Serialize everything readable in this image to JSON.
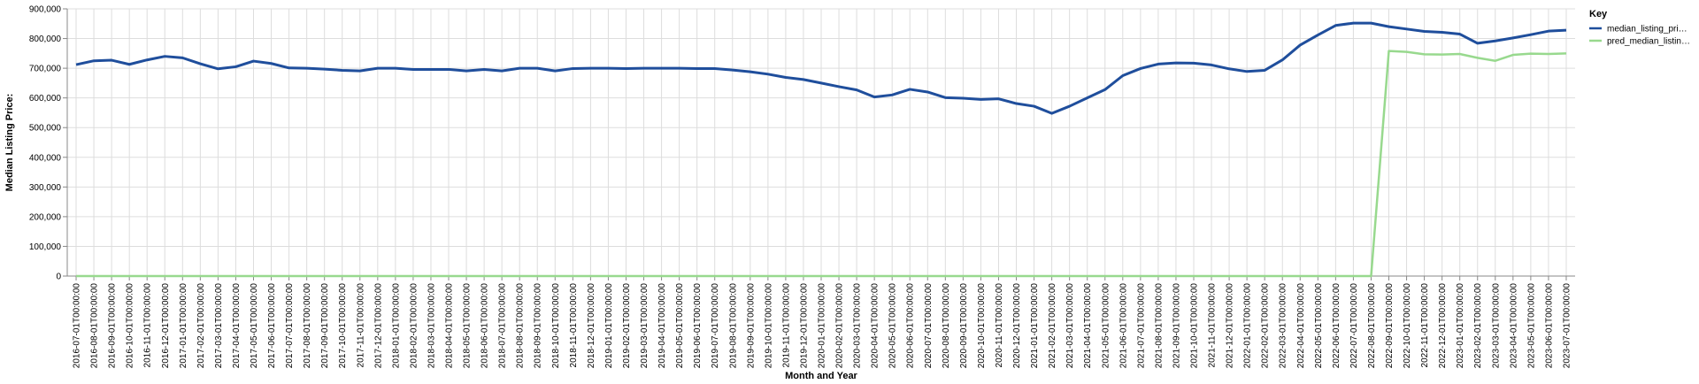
{
  "chart_data": {
    "type": "line",
    "xlabel": "Month and Year",
    "ylabel": "Median Listing Price:",
    "ylim": [
      0,
      900000
    ],
    "y_ticks": [
      "0",
      "100,000",
      "200,000",
      "300,000",
      "400,000",
      "500,000",
      "600,000",
      "700,000",
      "800,000",
      "900,000"
    ],
    "grid": true,
    "legend": {
      "title": "Key",
      "placement": "right"
    },
    "x": [
      "2016-07-01T00:00:00",
      "2016-08-01T00:00:00",
      "2016-09-01T00:00:00",
      "2016-10-01T00:00:00",
      "2016-11-01T00:00:00",
      "2016-12-01T00:00:00",
      "2017-01-01T00:00:00",
      "2017-02-01T00:00:00",
      "2017-03-01T00:00:00",
      "2017-04-01T00:00:00",
      "2017-05-01T00:00:00",
      "2017-06-01T00:00:00",
      "2017-07-01T00:00:00",
      "2017-08-01T00:00:00",
      "2017-09-01T00:00:00",
      "2017-10-01T00:00:00",
      "2017-11-01T00:00:00",
      "2017-12-01T00:00:00",
      "2018-01-01T00:00:00",
      "2018-02-01T00:00:00",
      "2018-03-01T00:00:00",
      "2018-04-01T00:00:00",
      "2018-05-01T00:00:00",
      "2018-06-01T00:00:00",
      "2018-07-01T00:00:00",
      "2018-08-01T00:00:00",
      "2018-09-01T00:00:00",
      "2018-10-01T00:00:00",
      "2018-11-01T00:00:00",
      "2018-12-01T00:00:00",
      "2019-01-01T00:00:00",
      "2019-02-01T00:00:00",
      "2019-03-01T00:00:00",
      "2019-04-01T00:00:00",
      "2019-05-01T00:00:00",
      "2019-06-01T00:00:00",
      "2019-07-01T00:00:00",
      "2019-08-01T00:00:00",
      "2019-09-01T00:00:00",
      "2019-10-01T00:00:00",
      "2019-11-01T00:00:00",
      "2019-12-01T00:00:00",
      "2020-01-01T00:00:00",
      "2020-02-01T00:00:00",
      "2020-03-01T00:00:00",
      "2020-04-01T00:00:00",
      "2020-05-01T00:00:00",
      "2020-06-01T00:00:00",
      "2020-07-01T00:00:00",
      "2020-08-01T00:00:00",
      "2020-09-01T00:00:00",
      "2020-10-01T00:00:00",
      "2020-11-01T00:00:00",
      "2020-12-01T00:00:00",
      "2021-01-01T00:00:00",
      "2021-02-01T00:00:00",
      "2021-03-01T00:00:00",
      "2021-04-01T00:00:00",
      "2021-05-01T00:00:00",
      "2021-06-01T00:00:00",
      "2021-07-01T00:00:00",
      "2021-08-01T00:00:00",
      "2021-09-01T00:00:00",
      "2021-10-01T00:00:00",
      "2021-11-01T00:00:00",
      "2021-12-01T00:00:00",
      "2022-01-01T00:00:00",
      "2022-02-01T00:00:00",
      "2022-03-01T00:00:00",
      "2022-04-01T00:00:00",
      "2022-05-01T00:00:00",
      "2022-06-01T00:00:00",
      "2022-07-01T00:00:00",
      "2022-08-01T00:00:00",
      "2022-09-01T00:00:00",
      "2022-10-01T00:00:00",
      "2022-11-01T00:00:00",
      "2022-12-01T00:00:00",
      "2023-01-01T00:00:00",
      "2023-02-01T00:00:00",
      "2023-03-01T00:00:00",
      "2023-04-01T00:00:00",
      "2023-05-01T00:00:00",
      "2023-06-01T00:00:00",
      "2023-07-01T00:00:00"
    ],
    "series": [
      {
        "name": "median_listing_pri…",
        "color": "#1f4e9c",
        "values": [
          712000,
          725000,
          727000,
          713000,
          728000,
          740000,
          735000,
          715000,
          698000,
          705000,
          724000,
          716000,
          701000,
          700000,
          697000,
          693000,
          691000,
          700000,
          700000,
          696000,
          696000,
          696000,
          691000,
          696000,
          691000,
          700000,
          700000,
          691000,
          699000,
          700000,
          700000,
          699000,
          700000,
          700000,
          700000,
          699000,
          699000,
          694000,
          688000,
          680000,
          669000,
          662000,
          650000,
          638000,
          627000,
          603000,
          610000,
          629000,
          620000,
          601000,
          599000,
          595000,
          597000,
          581000,
          572000,
          548000,
          572000,
          600000,
          628000,
          675000,
          699000,
          714000,
          718000,
          717000,
          711000,
          698000,
          689000,
          693000,
          728000,
          778000,
          812000,
          844000,
          852000,
          852000,
          840000,
          832000,
          824000,
          821000,
          815000,
          784000,
          792000,
          802000,
          813000,
          825000,
          828000
        ]
      },
      {
        "name": "pred_median_listin…",
        "color": "#98d98e",
        "values": [
          0,
          0,
          0,
          0,
          0,
          0,
          0,
          0,
          0,
          0,
          0,
          0,
          0,
          0,
          0,
          0,
          0,
          0,
          0,
          0,
          0,
          0,
          0,
          0,
          0,
          0,
          0,
          0,
          0,
          0,
          0,
          0,
          0,
          0,
          0,
          0,
          0,
          0,
          0,
          0,
          0,
          0,
          0,
          0,
          0,
          0,
          0,
          0,
          0,
          0,
          0,
          0,
          0,
          0,
          0,
          0,
          0,
          0,
          0,
          0,
          0,
          0,
          0,
          0,
          0,
          0,
          0,
          0,
          0,
          0,
          0,
          0,
          0,
          0,
          758000,
          755000,
          747000,
          746000,
          748000,
          735000,
          725000,
          745000,
          749000,
          748000,
          750000
        ]
      }
    ]
  }
}
